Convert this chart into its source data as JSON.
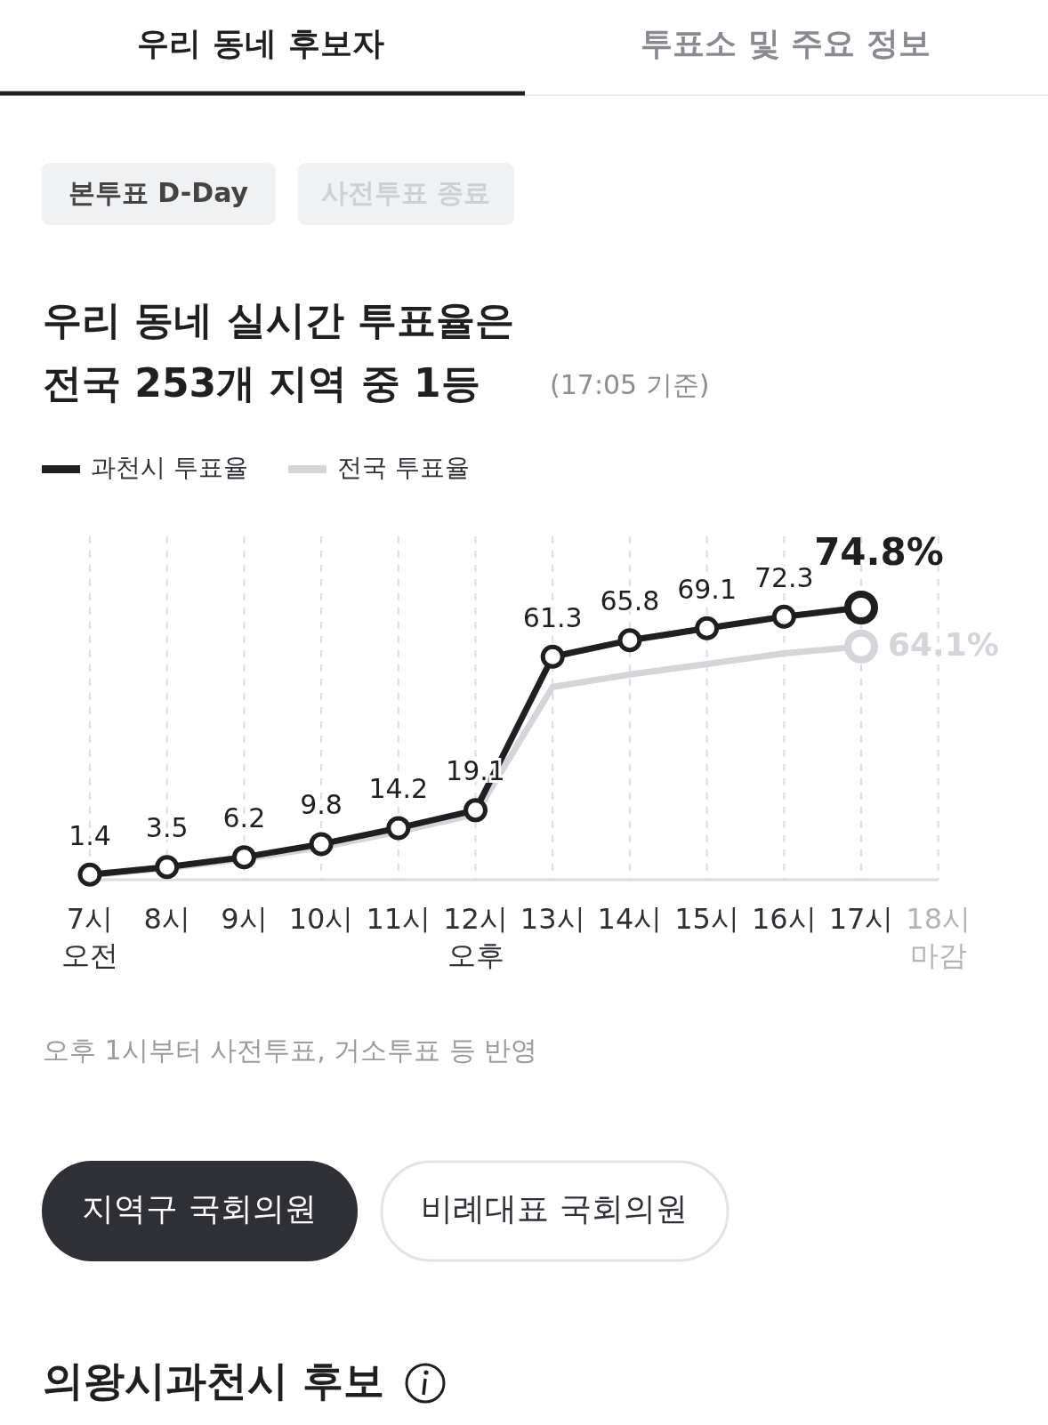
{
  "chart_data": {
    "type": "line",
    "title": "우리 동네 실시간 투표율은 전국 253개 지역 중 1등",
    "subtitle": "(17:05 기준)",
    "categories": [
      "7시 오전",
      "8시",
      "9시",
      "10시",
      "11시",
      "12시 오후",
      "13시",
      "14시",
      "15시",
      "16시",
      "17시",
      "18시 마감"
    ],
    "series": [
      {
        "name": "과천시 투표율",
        "color": "#1f1f21",
        "marker": "circle",
        "values": [
          1.4,
          3.5,
          6.2,
          9.8,
          14.2,
          19.1,
          61.3,
          65.8,
          69.1,
          72.3,
          74.8,
          null
        ],
        "value_labels": [
          "1.4",
          "3.5",
          "6.2",
          "9.8",
          "14.2",
          "19.1",
          "61.3",
          "65.8",
          "69.1",
          "72.3",
          "74.8%",
          null
        ]
      },
      {
        "name": "전국 투표율",
        "color": "#d4d5d9",
        "values": [
          1.2,
          3.2,
          5.7,
          8.9,
          13.2,
          18.0,
          53.0,
          56.4,
          59.3,
          62.2,
          64.1,
          null
        ],
        "value_labels": [
          null,
          null,
          null,
          null,
          null,
          null,
          null,
          null,
          null,
          null,
          "64.1%",
          null
        ]
      }
    ],
    "grid": "x",
    "legend": "top left",
    "tick_labels": "x",
    "annotations": [
      "우리 동네 후보자",
      "투표소 및 주요 정보",
      "본투표 D-Day",
      "사전투표 종료",
      "오후 1시부터 사전투표, 거소투표 등 반영",
      "지역구 국회의원",
      "비례대표 국회의원",
      "의왕시과천시 후보"
    ]
  }
}
